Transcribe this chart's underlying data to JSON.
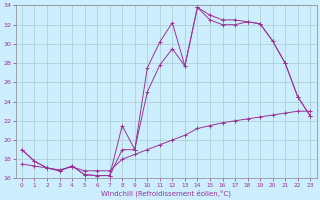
{
  "xlabel": "Windchill (Refroidissement éolien,°C)",
  "background_color": "#cceeff",
  "grid_color": "#aacccc",
  "line_color": "#993399",
  "xlim": [
    -0.5,
    23.5
  ],
  "ylim": [
    16,
    34
  ],
  "yticks": [
    16,
    18,
    20,
    22,
    24,
    26,
    28,
    30,
    32,
    34
  ],
  "xticks": [
    0,
    1,
    2,
    3,
    4,
    5,
    6,
    7,
    8,
    9,
    10,
    11,
    12,
    13,
    14,
    15,
    16,
    17,
    18,
    19,
    20,
    21,
    22,
    23
  ],
  "line1_x": [
    0,
    1,
    2,
    3,
    4,
    5,
    6,
    7,
    8,
    9,
    10,
    11,
    12,
    13,
    14,
    15,
    16,
    17,
    18,
    19,
    20,
    21,
    22,
    23
  ],
  "line1_y": [
    19.0,
    17.8,
    17.1,
    16.8,
    17.3,
    16.4,
    16.3,
    16.3,
    21.5,
    19.0,
    27.5,
    30.2,
    32.2,
    27.7,
    33.8,
    33.0,
    32.5,
    32.5,
    32.3,
    32.1,
    30.3,
    28.0,
    24.5,
    22.5
  ],
  "line2_x": [
    0,
    1,
    2,
    3,
    4,
    5,
    6,
    7,
    8,
    9,
    10,
    11,
    12,
    13,
    14,
    15,
    16,
    17,
    18,
    19,
    20,
    21,
    22,
    23
  ],
  "line2_y": [
    19.0,
    17.8,
    17.1,
    16.8,
    17.3,
    16.4,
    16.3,
    16.3,
    19.0,
    19.0,
    25.0,
    27.8,
    29.5,
    27.7,
    33.8,
    32.5,
    32.0,
    32.0,
    32.3,
    32.1,
    30.3,
    28.0,
    24.5,
    22.5
  ],
  "line3_x": [
    0,
    1,
    2,
    3,
    4,
    5,
    6,
    7,
    8,
    9,
    10,
    11,
    12,
    13,
    14,
    15,
    16,
    17,
    18,
    19,
    20,
    21,
    22,
    23
  ],
  "line3_y": [
    17.5,
    17.3,
    17.1,
    16.9,
    17.2,
    16.8,
    16.8,
    16.8,
    18.0,
    18.5,
    19.0,
    19.5,
    20.0,
    20.5,
    21.2,
    21.5,
    21.8,
    22.0,
    22.2,
    22.4,
    22.6,
    22.8,
    23.0,
    23.0
  ]
}
